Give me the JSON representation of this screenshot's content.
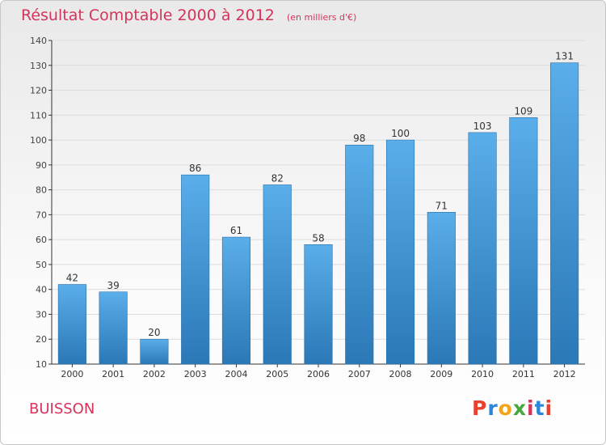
{
  "header": {
    "title": "Résultat Comptable 2000 à 2012",
    "subtitle": "(en milliers d'€)"
  },
  "footer": {
    "place": "BUISSON",
    "brand": "Proxiti",
    "brand_colors": [
      "#e8412e",
      "#2b87d8",
      "#f2a51a",
      "#46a83a",
      "#d6335a",
      "#2b87d8",
      "#e8412e"
    ]
  },
  "colors": {
    "bar_top": "#5aaeea",
    "bar_bottom": "#2b78b7",
    "title": "#d6335a",
    "grid": "#dcdcdc",
    "axis": "#333333"
  },
  "chart_data": {
    "type": "bar",
    "title": "Résultat Comptable 2000 à 2012",
    "subtitle": "(en milliers d'€)",
    "categories": [
      "2000",
      "2001",
      "2002",
      "2003",
      "2004",
      "2005",
      "2006",
      "2007",
      "2008",
      "2009",
      "2010",
      "2011",
      "2012"
    ],
    "values": [
      42,
      39,
      20,
      86,
      61,
      82,
      58,
      98,
      100,
      71,
      103,
      109,
      131
    ],
    "ylim": [
      10,
      140
    ],
    "yticks": [
      10,
      20,
      30,
      40,
      50,
      60,
      70,
      80,
      90,
      100,
      110,
      120,
      130,
      140
    ],
    "grid": true,
    "xlabel": "",
    "ylabel": ""
  }
}
